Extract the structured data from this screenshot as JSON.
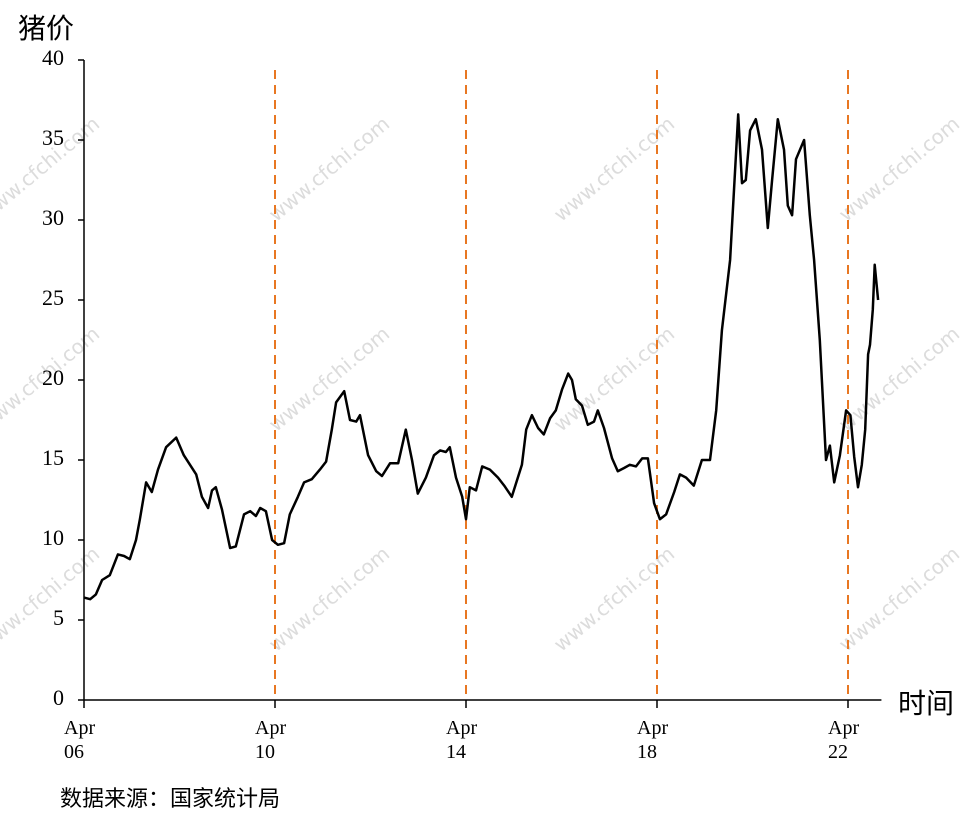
{
  "chart_data": {
    "type": "line",
    "title": "猪价",
    "x_label": "时间",
    "source": "数据来源：国家统计局",
    "watermark": "www.cfchi.com",
    "x": [
      0,
      0.13,
      0.25,
      0.38,
      0.54,
      0.71,
      0.84,
      0.96,
      1.09,
      1.17,
      1.3,
      1.42,
      1.55,
      1.72,
      1.93,
      2.09,
      2.35,
      2.47,
      2.6,
      2.68,
      2.76,
      2.89,
      3.06,
      3.18,
      3.35,
      3.48,
      3.6,
      3.69,
      3.81,
      3.94,
      4.06,
      4.19,
      4.31,
      4.48,
      4.61,
      4.77,
      4.94,
      5.07,
      5.19,
      5.28,
      5.45,
      5.57,
      5.7,
      5.78,
      5.95,
      6.12,
      6.24,
      6.41,
      6.58,
      6.74,
      6.87,
      6.99,
      7.16,
      7.33,
      7.46,
      7.58,
      7.66,
      7.79,
      7.92,
      8.0,
      8.08,
      8.21,
      8.34,
      8.5,
      8.67,
      8.8,
      8.96,
      9.17,
      9.26,
      9.38,
      9.51,
      9.63,
      9.76,
      9.88,
      10.01,
      10.14,
      10.22,
      10.3,
      10.43,
      10.55,
      10.68,
      10.76,
      10.89,
      11.06,
      11.18,
      11.31,
      11.43,
      11.56,
      11.69,
      11.81,
      11.94,
      12.06,
      12.19,
      12.36,
      12.48,
      12.61,
      12.77,
      12.94,
      13.11,
      13.24,
      13.36,
      13.53,
      13.7,
      13.78,
      13.86,
      13.95,
      14.07,
      14.2,
      14.32,
      14.41,
      14.53,
      14.66,
      14.74,
      14.83,
      14.91,
      15.08,
      15.2,
      15.29,
      15.41,
      15.54,
      15.62,
      15.71,
      15.83,
      15.96,
      16.05,
      16.13,
      16.21,
      16.29,
      16.36,
      16.42,
      16.46,
      16.52,
      16.56,
      16.63
    ],
    "series": [
      {
        "name": "猪价",
        "color": "#000000",
        "values": [
          6.4,
          6.3,
          6.6,
          7.5,
          7.8,
          9.1,
          9.0,
          8.8,
          10.0,
          11.3,
          13.6,
          13.0,
          14.4,
          15.8,
          16.4,
          15.3,
          14.1,
          12.7,
          12.0,
          13.1,
          13.3,
          11.9,
          9.5,
          9.6,
          11.6,
          11.8,
          11.5,
          12.0,
          11.8,
          10.0,
          9.7,
          9.8,
          11.6,
          12.7,
          13.6,
          13.8,
          14.4,
          14.9,
          16.9,
          18.6,
          19.3,
          17.5,
          17.4,
          17.8,
          15.3,
          14.3,
          14.0,
          14.8,
          14.8,
          16.9,
          15.0,
          12.9,
          13.9,
          15.3,
          15.6,
          15.5,
          15.8,
          13.9,
          12.7,
          11.3,
          13.3,
          13.1,
          14.6,
          14.4,
          13.9,
          13.4,
          12.7,
          14.7,
          16.9,
          17.8,
          17.0,
          16.6,
          17.6,
          18.1,
          19.4,
          20.4,
          20.0,
          18.8,
          18.4,
          17.2,
          17.4,
          18.1,
          17.0,
          15.1,
          14.3,
          14.5,
          14.7,
          14.6,
          15.1,
          15.1,
          12.3,
          11.3,
          11.6,
          13.0,
          14.1,
          13.9,
          13.4,
          15.0,
          15.0,
          18.1,
          23.1,
          27.5,
          36.6,
          32.3,
          32.5,
          35.6,
          36.3,
          34.4,
          29.5,
          32.5,
          36.3,
          34.4,
          30.9,
          30.3,
          33.8,
          35.0,
          30.3,
          27.5,
          22.5,
          15.0,
          15.9,
          13.6,
          15.3,
          18.1,
          17.8,
          15.2,
          13.3,
          14.7,
          16.9,
          21.6,
          22.2,
          24.4,
          27.2,
          25.0
        ]
      }
    ],
    "xlim": [
      0,
      16.7
    ],
    "xticks": [
      {
        "value": 0,
        "label": "Apr\n06"
      },
      {
        "value": 4,
        "label": "Apr\n10"
      },
      {
        "value": 8,
        "label": "Apr\n14"
      },
      {
        "value": 12,
        "label": "Apr\n18"
      },
      {
        "value": 16,
        "label": "Apr\n22"
      }
    ],
    "ylim": [
      0,
      40
    ],
    "yticks": [
      0,
      5,
      10,
      15,
      20,
      25,
      30,
      35,
      40
    ],
    "grid": true,
    "grid_color": "#e87722"
  }
}
